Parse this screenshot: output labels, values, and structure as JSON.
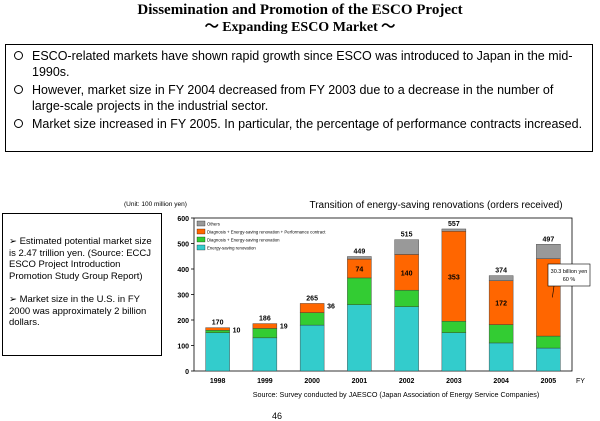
{
  "header": {
    "title": "Dissemination and Promotion of the ESCO Project",
    "subtitle": "～ Expanding ESCO Market ～"
  },
  "bullets": [
    "ESCO-related markets have shown rapid growth since ESCO was introduced to Japan in the mid-1990s.",
    "However, market size in FY 2004 decreased from FY 2003 due to a decrease in the number of large-scale projects in the industrial sector.",
    "Market size increased in FY 2005. In particular, the percentage of performance contracts increased."
  ],
  "side_notes": [
    "➢ Estimated potential market size is 2.47 trillion yen. (Source: ECCJ ESCO Project Introduction Promotion Study Group Report)",
    "➢ Market size in the U.S. in FY 2000 was approximately 2 billion dollars."
  ],
  "chart_data": {
    "type": "bar",
    "stacked": true,
    "title": "Transition of energy-saving renovations (orders received)",
    "unit_label": "(Unit: 100 million yen)",
    "xlabel": "FY",
    "ylabel": "",
    "ylim": [
      0,
      600
    ],
    "yticks": [
      0,
      100,
      200,
      300,
      400,
      500,
      600
    ],
    "categories": [
      "1998",
      "1999",
      "2000",
      "2001",
      "2002",
      "2003",
      "2004",
      "2005"
    ],
    "series": [
      {
        "name": "Energy-saving renovation",
        "color": "#33cccc",
        "values": [
          150,
          130,
          180,
          260,
          252,
          150,
          110,
          90
        ]
      },
      {
        "name": "Diagnosis + Energy-saving renovation",
        "color": "#33cc33",
        "values": [
          10,
          37,
          49,
          105,
          65,
          45,
          72,
          47
        ]
      },
      {
        "name": "Diagnosis + Energy-saving renovation + Performance contract",
        "color": "#ff6600",
        "values": [
          10,
          19,
          36,
          74,
          140,
          353,
          172,
          303
        ]
      },
      {
        "name": "Others",
        "color": "#999999",
        "values": [
          0,
          0,
          0,
          10,
          58,
          9,
          20,
          57
        ]
      }
    ],
    "totals": [
      170,
      186,
      265,
      449,
      515,
      557,
      374,
      497
    ],
    "segment_labels": [
      {
        "category": "1998",
        "series": "Diagnosis + Energy-saving renovation + Performance contract",
        "text": "10",
        "position": "right"
      },
      {
        "category": "1999",
        "series": "Diagnosis + Energy-saving renovation + Performance contract",
        "text": "19",
        "position": "right"
      },
      {
        "category": "2000",
        "series": "Diagnosis + Energy-saving renovation + Performance contract",
        "text": "36",
        "position": "right"
      },
      {
        "category": "2001",
        "series": "Diagnosis + Energy-saving renovation + Performance contract",
        "text": "74",
        "position": "inside"
      },
      {
        "category": "2002",
        "series": "Diagnosis + Energy-saving renovation + Performance contract",
        "text": "140",
        "position": "inside"
      },
      {
        "category": "2003",
        "series": "Diagnosis + Energy-saving renovation + Performance contract",
        "text": "353",
        "position": "inside"
      },
      {
        "category": "2004",
        "series": "Diagnosis + Energy-saving renovation + Performance contract",
        "text": "172",
        "position": "inside"
      }
    ],
    "callout": {
      "category": "2005",
      "lines": [
        "30.3 billion yen",
        "60 %"
      ]
    },
    "source": "Source: Survey conducted by JAESCO (Japan Association of Energy Service Companies)"
  },
  "footer": {
    "page_number": "46"
  }
}
